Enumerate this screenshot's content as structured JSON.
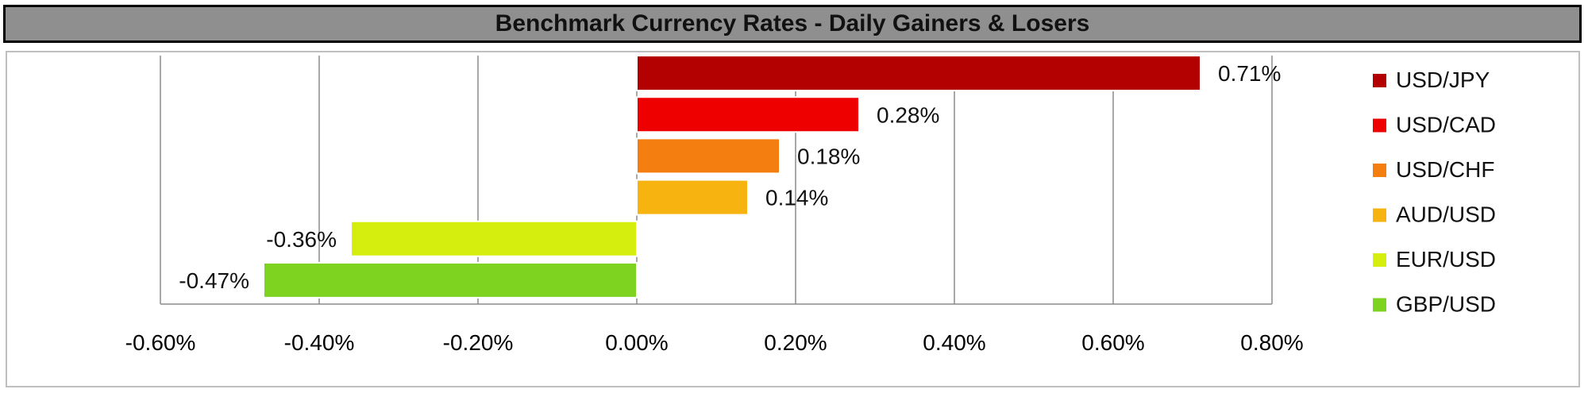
{
  "chart_data": {
    "type": "bar",
    "orientation": "horizontal",
    "title": "Benchmark Currency Rates - Daily Gainers & Losers",
    "categories": [
      "USD/JPY",
      "USD/CAD",
      "USD/CHF",
      "AUD/USD",
      "EUR/USD",
      "GBP/USD"
    ],
    "values": [
      0.71,
      0.28,
      0.18,
      0.14,
      -0.36,
      -0.47
    ],
    "data_labels": [
      "0.71%",
      "0.28%",
      "0.18%",
      "0.14%",
      "-0.36%",
      "-0.47%"
    ],
    "colors": [
      "#b30000",
      "#ee0000",
      "#f47f10",
      "#f7b30f",
      "#d6ee0d",
      "#7ed321"
    ],
    "xlim": [
      -0.6,
      0.8
    ],
    "x_ticks": [
      -0.6,
      -0.4,
      -0.2,
      0.0,
      0.2,
      0.4,
      0.6,
      0.8
    ],
    "x_tick_labels": [
      "-0.60%",
      "-0.40%",
      "-0.20%",
      "0.00%",
      "0.20%",
      "0.40%",
      "0.60%",
      "0.80%"
    ],
    "grid": "vertical",
    "legend_position": "right",
    "xlabel": "",
    "ylabel": ""
  }
}
